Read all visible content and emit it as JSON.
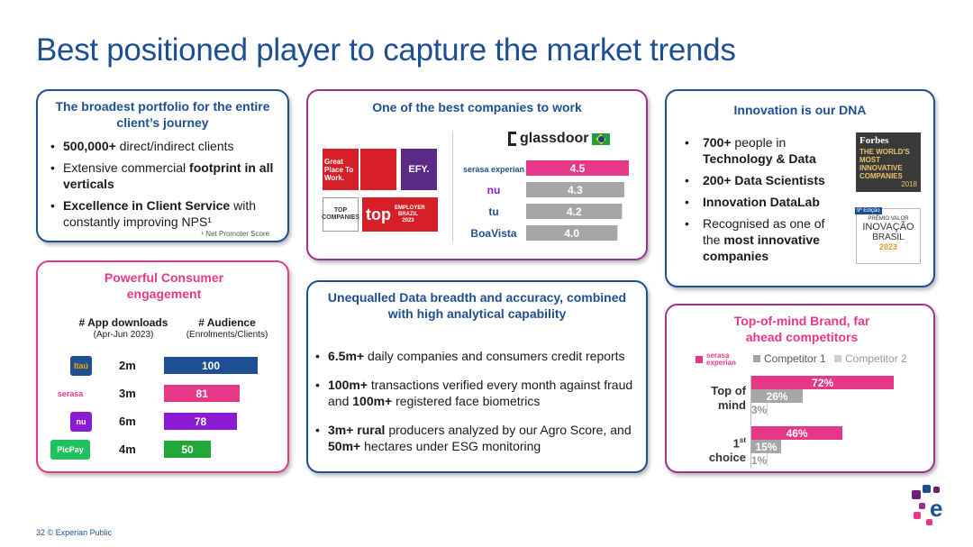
{
  "title": "Best positioned player to capture the market trends",
  "portfolio": {
    "title": "The broadest portfolio for the entire client’s journey",
    "bullets": [
      {
        "bold": "500,000+",
        "rest": " direct/indirect clients"
      },
      {
        "pre": "Extensive commercial ",
        "bold": "footprint in all verticals"
      },
      {
        "bold": "Excellence in Client Service",
        "rest": " with constantly improving NPS¹"
      }
    ],
    "footnote": "¹ Net Promoter Score"
  },
  "work": {
    "title": "One of the best companies to work",
    "badges": {
      "gptw": "Great Place To Work.",
      "top_companies": "TOP COMPANIES",
      "top_employer": "top",
      "top_employer_sub": "EMPLOYER BRAZIL 2023",
      "efy": "EFY."
    },
    "glassdoor": "glassdoor",
    "ratings": [
      {
        "company": "serasa experian",
        "value": "4.5",
        "score": 4.5,
        "color": "#e63888"
      },
      {
        "company": "nu",
        "value": "4.3",
        "score": 4.3,
        "color": "#a6a6a6"
      },
      {
        "company": "tu",
        "value": "4.2",
        "score": 4.2,
        "color": "#a6a6a6"
      },
      {
        "company": "BoaVista",
        "value": "4.0",
        "score": 4.0,
        "color": "#a6a6a6"
      }
    ]
  },
  "innovation": {
    "title": "Innovation is our DNA",
    "bullets": [
      {
        "bold": "700+",
        "rest": " people in ",
        "bold2": "Technology & Data"
      },
      {
        "bold": "200+ Data Scientists"
      },
      {
        "bold": "Innovation DataLab"
      },
      {
        "pre": "Recognised as one of the ",
        "bold": "most innovative companies"
      }
    ],
    "forbes": {
      "brand": "Forbes",
      "text": "THE WORLD'S MOST INNOVATIVE COMPANIES",
      "year": "2018"
    },
    "valor": {
      "edition": "9ª Edição",
      "top": "PRÊMIO VALOR",
      "text": "INOVAÇÃO",
      "country": "BRASIL",
      "year": "2023"
    }
  },
  "consumer": {
    "title": "Powerful Consumer engagement",
    "col1": "# App downloads",
    "col1_sub": "(Apr-Jun 2023)",
    "col2": "# Audience",
    "col2_sub": "(Enrolments/Clients)",
    "rows": [
      {
        "brand": "Itaú",
        "downloads": "2m",
        "audience": "100",
        "audience_num": 100,
        "color": "#1d4f91",
        "logo_bg": "#1d4f91",
        "logo_fg": "#f7a600"
      },
      {
        "brand": "serasa",
        "downloads": "3m",
        "audience": "81",
        "audience_num": 81,
        "color": "#e63888",
        "logo_bg": "#ffffff",
        "logo_fg": "#e63888"
      },
      {
        "brand": "nu",
        "downloads": "6m",
        "audience": "78",
        "audience_num": 78,
        "color": "#8a1bd3",
        "logo_bg": "#8a1bd3",
        "logo_fg": "#ffffff"
      },
      {
        "brand": "PicPay",
        "downloads": "4m",
        "audience": "50",
        "audience_num": 50,
        "color": "#21a838",
        "logo_bg": "#21c25e",
        "logo_fg": "#ffffff"
      }
    ]
  },
  "data": {
    "title": "Unequalled Data breadth and accuracy, combined with high analytical capability",
    "bullets": [
      {
        "bold": "6.5m+",
        "rest": " daily companies and consumers credit reports"
      },
      {
        "bold": "100m+",
        "rest": " transactions verified every month against fraud and ",
        "bold2": "100m+",
        "rest2": " registered face biometrics"
      },
      {
        "bold": "3m+ rural",
        "rest": " producers analyzed by our Agro Score, and ",
        "bold2": "50m+",
        "rest2": " hectares under ESG monitoring"
      }
    ]
  },
  "brand": {
    "title": "Top-of-mind Brand, far ahead competitors",
    "legend": [
      {
        "name": "serasa experian",
        "color": "#e63888"
      },
      {
        "name": "Competitor 1",
        "color": "#a6a6a6"
      },
      {
        "name": "Competitor 2",
        "color": "#d0d0d0"
      }
    ],
    "chart_data": {
      "type": "bar",
      "categories": [
        "Top of mind",
        "1st choice"
      ],
      "series": [
        {
          "name": "serasa experian",
          "values": [
            72,
            46
          ],
          "labels": [
            "72%",
            "46%"
          ]
        },
        {
          "name": "Competitor 1",
          "values": [
            26,
            15
          ],
          "labels": [
            "26%",
            "15%"
          ]
        },
        {
          "name": "Competitor 2",
          "values": [
            3,
            1
          ],
          "labels": [
            "3%",
            "1%"
          ]
        }
      ]
    },
    "row_labels": [
      [
        "Top of",
        "mind"
      ],
      [
        "1",
        "st",
        "choice"
      ]
    ]
  },
  "footer": "32   © Experian Public"
}
